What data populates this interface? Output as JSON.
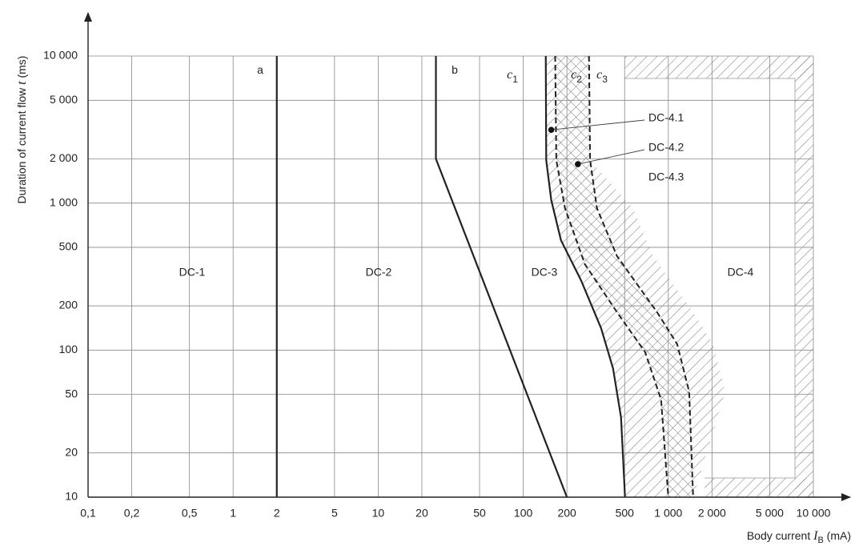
{
  "chart_data": {
    "type": "line",
    "log_x": true,
    "log_y": true,
    "grid": true,
    "xlabel": {
      "text": "Body current",
      "symbol": "I",
      "subscript": "B",
      "unit": "(mA)"
    },
    "ylabel": {
      "text": "Duration of current flow",
      "symbol": "t",
      "unit": "(ms)"
    },
    "xlim": [
      0.1,
      10000
    ],
    "ylim": [
      10,
      10000
    ],
    "xticks": [
      {
        "value": 0.1,
        "label": "0,1"
      },
      {
        "value": 0.2,
        "label": "0,2"
      },
      {
        "value": 0.5,
        "label": "0,5"
      },
      1,
      2,
      5,
      10,
      20,
      50,
      100,
      200,
      500,
      {
        "value": 1000,
        "label": "1 000"
      },
      {
        "value": 2000,
        "label": "2 000"
      },
      {
        "value": 5000,
        "label": "5 000"
      },
      {
        "value": 10000,
        "label": "10 000"
      }
    ],
    "yticks": [
      10,
      20,
      50,
      100,
      200,
      500,
      {
        "value": 1000,
        "label": "1 000"
      },
      {
        "value": 2000,
        "label": "2 000"
      },
      {
        "value": 5000,
        "label": "5 000"
      },
      {
        "value": 10000,
        "label": "10 000"
      }
    ],
    "series": [
      {
        "name": "a",
        "color": "#222222",
        "dashed": false,
        "x": [
          2,
          2
        ],
        "values": [
          10,
          10000
        ]
      },
      {
        "name": "b",
        "color": "#222222",
        "dashed": false,
        "x": [
          25,
          25,
          200
        ],
        "values": [
          10000,
          2000,
          10
        ]
      },
      {
        "name": "c",
        "subscript": "1",
        "color": "#222222",
        "dashed": false,
        "x": [
          143,
          144,
          156,
          182,
          250,
          344,
          416,
          472,
          503
        ],
        "values": [
          10000,
          1959,
          1047,
          559,
          299,
          141,
          75,
          35,
          10
        ]
      },
      {
        "name": "c",
        "subscript": "2",
        "color": "#222222",
        "dashed": true,
        "x": [
          166,
          169,
          194,
          266,
          443,
          692,
          892,
          1000
        ],
        "values": [
          10000,
          1959,
          923,
          384,
          181,
          97,
          46,
          10
        ]
      },
      {
        "name": "c",
        "subscript": "3",
        "color": "#222222",
        "dashed": true,
        "x": [
          284,
          289,
          322,
          443,
          837,
          1151,
          1393,
          1483
        ],
        "values": [
          10000,
          1959,
          923,
          436,
          181,
          110,
          52,
          10
        ]
      }
    ],
    "zones": [
      "DC-1",
      "DC-2",
      "DC-3",
      "DC-4"
    ],
    "annotations": [
      {
        "text": "DC-4.1",
        "x": 156,
        "y": 3150
      },
      {
        "text": "DC-4.2",
        "x": 238,
        "y": 1840
      },
      {
        "text": "DC-4.3"
      }
    ]
  }
}
